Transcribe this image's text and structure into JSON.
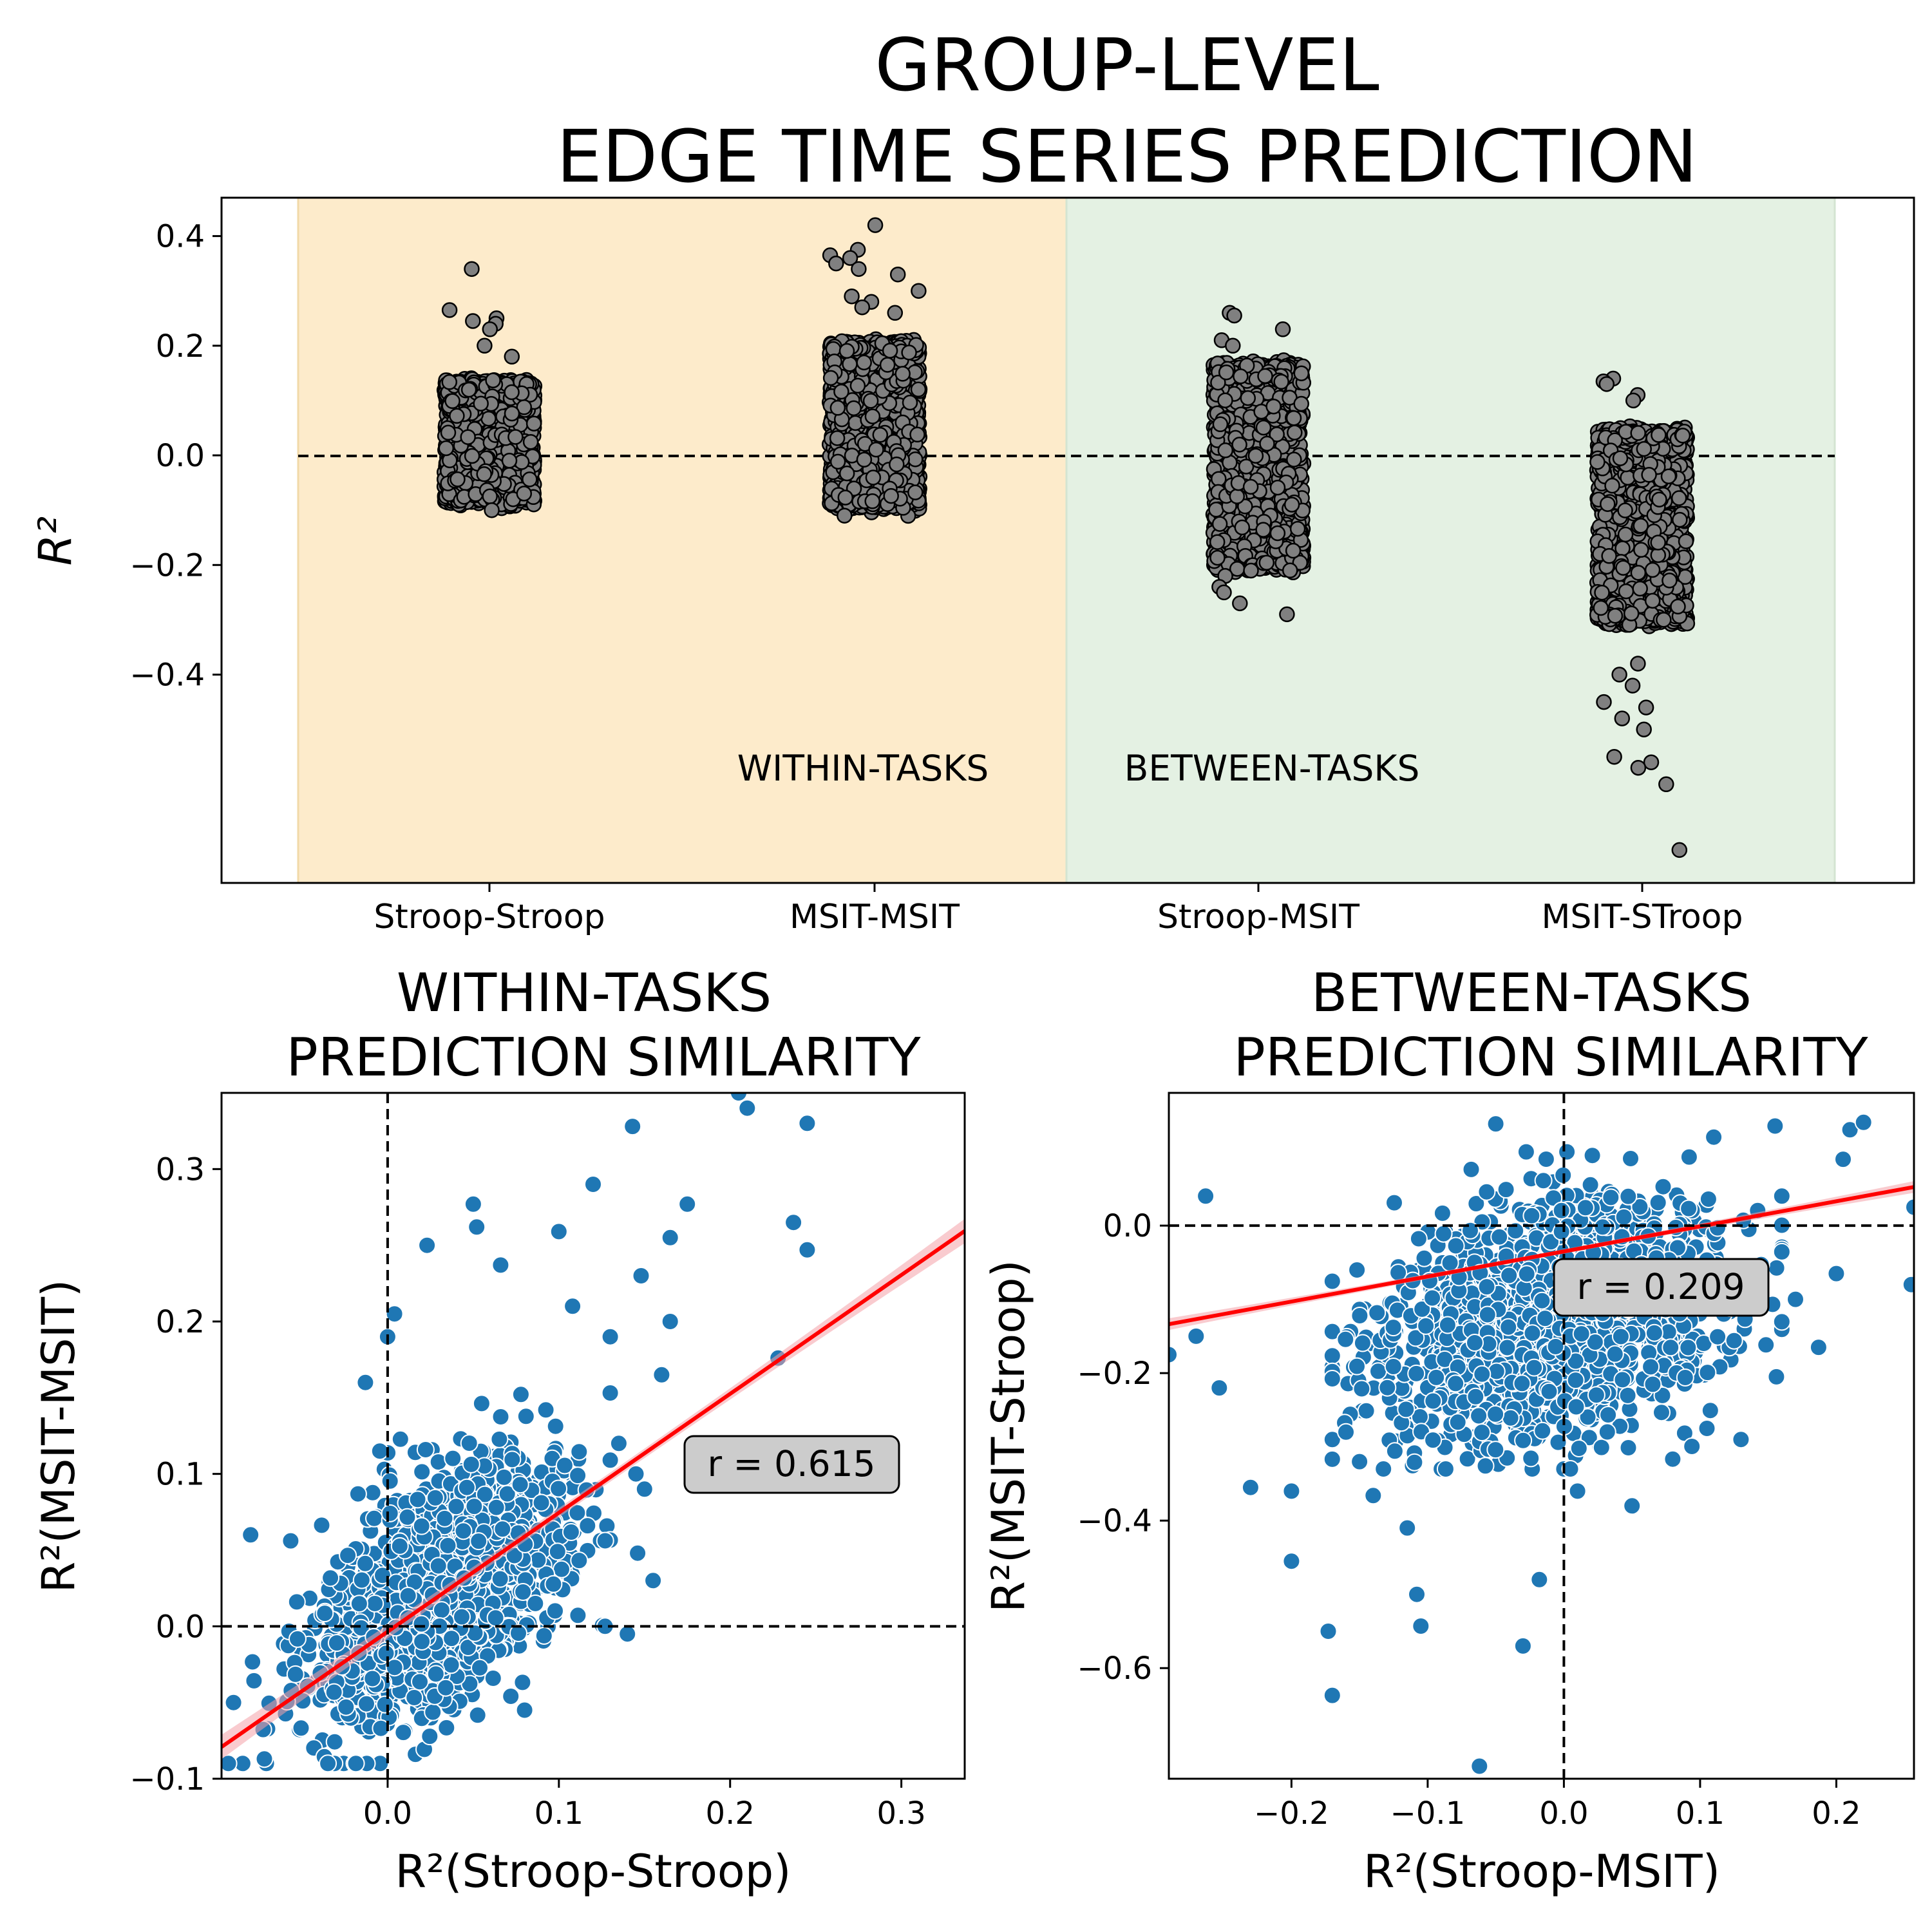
{
  "title": {
    "line1": "GROUP-LEVEL",
    "line2": "EDGE TIME SERIES PREDICTION"
  },
  "colors": {
    "within_band": "#fdebcb",
    "between_band": "#e4f1e3",
    "strip_fill": "#808080",
    "scatter": "#1f77b4",
    "fit": "#ff0000",
    "fit_ci": "#f4a0a8"
  },
  "chart_data": [
    {
      "id": "top",
      "type": "scatter",
      "subtype": "strip",
      "title": "",
      "ylabel": "R²",
      "xlabel": "",
      "categories": [
        "Stroop-Stroop",
        "MSIT-MSIT",
        "Stroop-MSIT",
        "MSIT-STroop"
      ],
      "ylim": [
        -0.78,
        0.47
      ],
      "yticks": [
        "0.4",
        "0.2",
        "0.0",
        "−0.2",
        "−0.4"
      ],
      "ytick_values": [
        0.4,
        0.2,
        0.0,
        -0.2,
        -0.4
      ],
      "regions": [
        {
          "label": "WITHIN-TASKS",
          "from": 0,
          "to": 1,
          "color": "#fdebcb"
        },
        {
          "label": "BETWEEN-TASKS",
          "from": 2,
          "to": 3,
          "color": "#e4f1e3"
        }
      ],
      "reference_line": 0.0,
      "series": [
        {
          "category": "Stroop-Stroop",
          "n": 1600,
          "bulk": [
            -0.08,
            0.13
          ],
          "outliers": [
            0.34,
            0.265,
            0.25,
            0.245,
            0.24,
            0.23,
            0.2,
            0.18,
            -0.1
          ]
        },
        {
          "category": "MSIT-MSIT",
          "n": 1600,
          "bulk": [
            -0.09,
            0.2
          ],
          "outliers": [
            0.42,
            0.375,
            0.365,
            0.36,
            0.35,
            0.34,
            0.33,
            0.3,
            0.29,
            0.28,
            0.27,
            0.26,
            -0.11
          ]
        },
        {
          "category": "Stroop-MSIT",
          "n": 1600,
          "bulk": [
            -0.2,
            0.16
          ],
          "outliers": [
            0.26,
            0.255,
            0.23,
            0.21,
            0.2,
            -0.21,
            -0.22,
            -0.24,
            -0.25,
            -0.27,
            -0.29
          ]
        },
        {
          "category": "MSIT-STroop",
          "n": 1600,
          "bulk": [
            -0.3,
            0.04
          ],
          "outliers": [
            0.14,
            0.135,
            0.13,
            0.11,
            0.1,
            -0.38,
            -0.4,
            -0.42,
            -0.45,
            -0.46,
            -0.48,
            -0.5,
            -0.55,
            -0.56,
            -0.57,
            -0.6,
            -0.72
          ]
        }
      ]
    },
    {
      "id": "left",
      "type": "scatter",
      "title": [
        "WITHIN-TASKS",
        "PREDICTION SIMILARITY"
      ],
      "xlabel": "R²(Stroop-Stroop)",
      "ylabel": "R²(MSIT-MSIT)",
      "xlim": [
        -0.097,
        0.337
      ],
      "ylim": [
        -0.1,
        0.35
      ],
      "xticks": [
        "0.0",
        "0.1",
        "0.2",
        "0.3"
      ],
      "xtick_values": [
        0.0,
        0.1,
        0.2,
        0.3
      ],
      "yticks": [
        "−0.1",
        "0.0",
        "0.1",
        "0.2",
        "0.3"
      ],
      "ytick_values": [
        -0.1,
        0.0,
        0.1,
        0.2,
        0.3
      ],
      "r_label": "r = 0.615",
      "fit": {
        "slope": 0.78,
        "intercept": -0.0035
      },
      "n_points": 1700,
      "outliers": [
        [
          0.21,
          0.34
        ],
        [
          0.205,
          0.35
        ],
        [
          0.245,
          0.33
        ],
        [
          0.143,
          0.328
        ],
        [
          0.12,
          0.29
        ],
        [
          0.175,
          0.277
        ],
        [
          0.237,
          0.265
        ],
        [
          0.245,
          0.247
        ],
        [
          0.165,
          0.255
        ],
        [
          0.1,
          0.259
        ],
        [
          0.05,
          0.277
        ],
        [
          0.052,
          0.262
        ],
        [
          0.023,
          0.25
        ],
        [
          0.066,
          0.237
        ],
        [
          0.148,
          0.23
        ],
        [
          0.165,
          0.2
        ],
        [
          0.228,
          0.176
        ],
        [
          0.16,
          0.165
        ],
        [
          0.135,
          0.12
        ],
        [
          0.146,
          0.048
        ],
        [
          0.155,
          0.03
        ],
        [
          0.127,
          0.0
        ],
        [
          0.14,
          -0.005
        ],
        [
          0.08,
          -0.055
        ],
        [
          0.02,
          -0.01
        ],
        [
          -0.093,
          -0.09
        ],
        [
          -0.072,
          -0.087
        ],
        [
          -0.09,
          -0.05
        ],
        [
          -0.08,
          0.06
        ],
        [
          0.0,
          0.19
        ],
        [
          0.004,
          0.205
        ],
        [
          -0.013,
          0.16
        ],
        [
          0.15,
          0.09
        ],
        [
          0.145,
          0.1
        ],
        [
          0.13,
          0.19
        ],
        [
          0.108,
          0.21
        ]
      ]
    },
    {
      "id": "right",
      "type": "scatter",
      "title": [
        "BETWEEN-TASKS",
        "PREDICTION SIMILARITY"
      ],
      "xlabel": "R²(Stroop-MSIT)",
      "ylabel": "R²(MSIT-Stroop)",
      "xlim": [
        -0.29,
        0.257
      ],
      "ylim": [
        -0.75,
        0.18
      ],
      "xticks": [
        "−0.2",
        "−0.1",
        "0.0",
        "0.1",
        "0.2"
      ],
      "xtick_values": [
        -0.2,
        -0.1,
        0.0,
        0.1,
        0.2
      ],
      "yticks": [
        "0.0",
        "−0.2",
        "−0.4",
        "−0.6"
      ],
      "ytick_values": [
        0.0,
        -0.2,
        -0.4,
        -0.6
      ],
      "r_label": "r = 0.209",
      "fit": {
        "slope": 0.34,
        "intercept": -0.035
      },
      "n_points": 1700,
      "outliers": [
        [
          -0.062,
          -0.733
        ],
        [
          -0.03,
          -0.57
        ],
        [
          -0.17,
          -0.637
        ],
        [
          -0.173,
          -0.55
        ],
        [
          -0.2,
          -0.455
        ],
        [
          -0.108,
          -0.5
        ],
        [
          -0.105,
          -0.543
        ],
        [
          -0.018,
          -0.48
        ],
        [
          -0.14,
          -0.366
        ],
        [
          -0.115,
          -0.41
        ],
        [
          -0.23,
          -0.355
        ],
        [
          -0.2,
          -0.36
        ],
        [
          -0.29,
          -0.175
        ],
        [
          -0.27,
          -0.15
        ],
        [
          -0.253,
          -0.22
        ],
        [
          -0.263,
          0.04
        ],
        [
          -0.05,
          0.138
        ],
        [
          0.11,
          0.12
        ],
        [
          0.155,
          0.135
        ],
        [
          0.21,
          0.13
        ],
        [
          0.22,
          0.14
        ],
        [
          0.205,
          0.09
        ],
        [
          0.257,
          0.025
        ],
        [
          0.255,
          -0.08
        ],
        [
          0.17,
          -0.1
        ],
        [
          0.187,
          -0.165
        ],
        [
          0.13,
          -0.29
        ],
        [
          0.105,
          -0.275
        ],
        [
          0.05,
          -0.38
        ],
        [
          0.156,
          -0.205
        ],
        [
          0.2,
          -0.065
        ],
        [
          0.16,
          0.04
        ],
        [
          0.01,
          -0.36
        ],
        [
          -0.16,
          -0.28
        ],
        [
          -0.15,
          -0.32
        ]
      ]
    }
  ]
}
